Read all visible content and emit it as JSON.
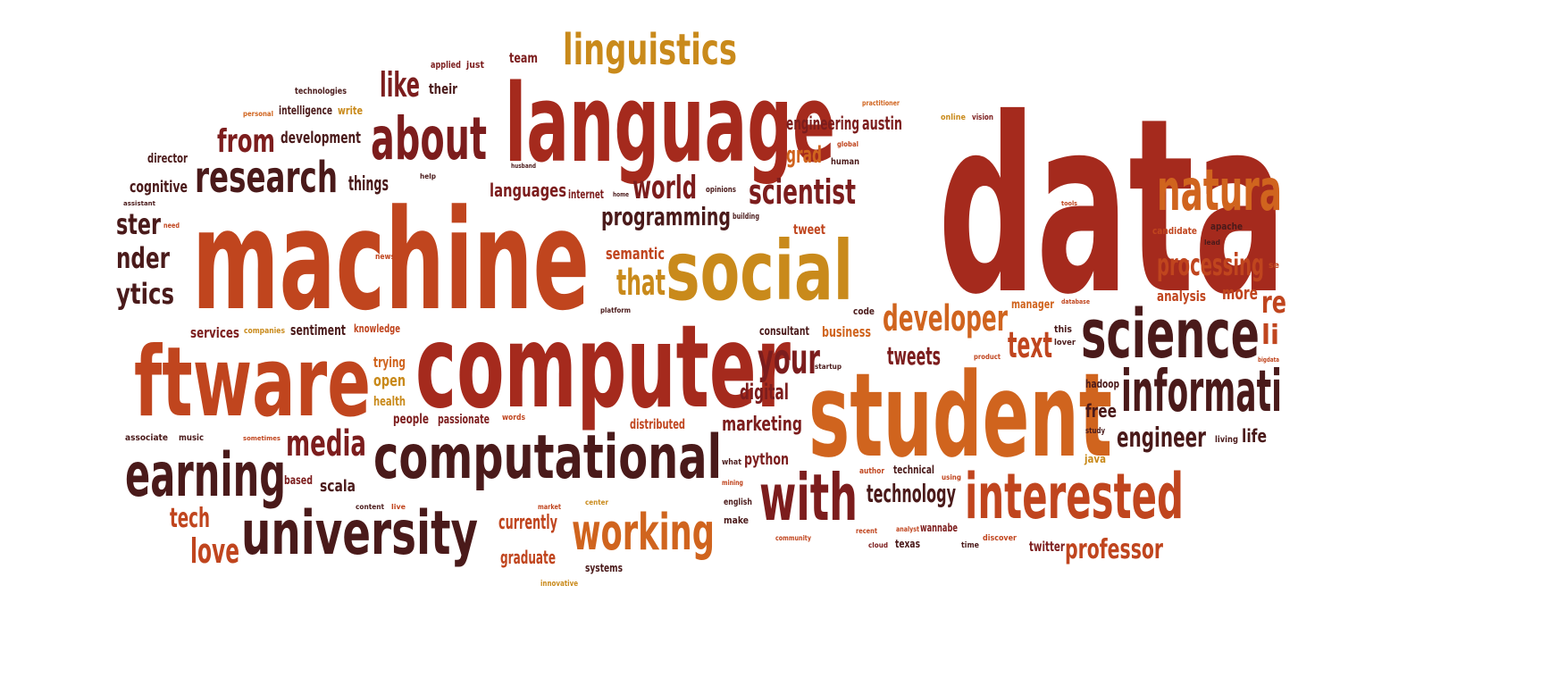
{
  "palette": {
    "dark": "#4a1a1a",
    "maroon": "#7c1d1d",
    "red": "#a52a1d",
    "rust": "#c0451e",
    "orange": "#d0641e",
    "gold": "#c98a1b"
  },
  "words": [
    {
      "text": "data",
      "color": "red"
    },
    {
      "text": "machine",
      "color": "rust"
    },
    {
      "text": "language",
      "color": "red"
    },
    {
      "text": "computer",
      "color": "red"
    },
    {
      "text": "student",
      "color": "orange"
    },
    {
      "text": "ftware",
      "color": "rust"
    },
    {
      "text": "social",
      "color": "gold"
    },
    {
      "text": "computational",
      "color": "dark"
    },
    {
      "text": "science",
      "color": "dark"
    },
    {
      "text": "informati",
      "color": "dark"
    },
    {
      "text": "interested",
      "color": "rust"
    },
    {
      "text": "university",
      "color": "dark"
    },
    {
      "text": "earning",
      "color": "dark"
    },
    {
      "text": "natura",
      "color": "orange"
    },
    {
      "text": "about",
      "color": "maroon"
    },
    {
      "text": "research",
      "color": "dark"
    },
    {
      "text": "linguistics",
      "color": "gold"
    },
    {
      "text": "with",
      "color": "maroon"
    },
    {
      "text": "working",
      "color": "orange"
    },
    {
      "text": "developer",
      "color": "orange"
    },
    {
      "text": "scientist",
      "color": "maroon"
    },
    {
      "text": "media",
      "color": "maroon"
    },
    {
      "text": "your",
      "color": "maroon"
    },
    {
      "text": "from",
      "color": "maroon"
    },
    {
      "text": "processing",
      "color": "rust"
    },
    {
      "text": "like",
      "color": "maroon"
    },
    {
      "text": "world",
      "color": "maroon"
    },
    {
      "text": "that",
      "color": "gold"
    },
    {
      "text": "text",
      "color": "rust"
    },
    {
      "text": "programming",
      "color": "dark"
    },
    {
      "text": "engineer",
      "color": "dark"
    },
    {
      "text": "technology",
      "color": "dark"
    },
    {
      "text": "professor",
      "color": "rust"
    },
    {
      "text": "tweets",
      "color": "maroon"
    },
    {
      "text": "love",
      "color": "rust"
    },
    {
      "text": "tech",
      "color": "rust"
    },
    {
      "text": "ster",
      "color": "dark"
    },
    {
      "text": "nder",
      "color": "dark"
    },
    {
      "text": "ytics",
      "color": "dark"
    },
    {
      "text": "re",
      "color": "rust"
    },
    {
      "text": "li",
      "color": "rust"
    },
    {
      "text": "things",
      "color": "dark"
    },
    {
      "text": "marketing",
      "color": "maroon"
    },
    {
      "text": "digital",
      "color": "maroon"
    },
    {
      "text": "currently",
      "color": "rust"
    },
    {
      "text": "graduate",
      "color": "rust"
    },
    {
      "text": "languages",
      "color": "maroon"
    },
    {
      "text": "grad",
      "color": "orange"
    },
    {
      "text": "engineering",
      "color": "maroon"
    },
    {
      "text": "austin",
      "color": "maroon"
    },
    {
      "text": "development",
      "color": "dark"
    },
    {
      "text": "cognitive",
      "color": "dark"
    },
    {
      "text": "free",
      "color": "dark"
    },
    {
      "text": "life",
      "color": "dark"
    },
    {
      "text": "more",
      "color": "rust"
    },
    {
      "text": "analysis",
      "color": "rust"
    },
    {
      "text": "python",
      "color": "maroon"
    },
    {
      "text": "semantic",
      "color": "rust"
    },
    {
      "text": "scala",
      "color": "dark"
    },
    {
      "text": "sentiment",
      "color": "dark"
    },
    {
      "text": "services",
      "color": "maroon"
    },
    {
      "text": "business",
      "color": "orange"
    },
    {
      "text": "twitter",
      "color": "maroon"
    },
    {
      "text": "people",
      "color": "maroon"
    },
    {
      "text": "passionate",
      "color": "maroon"
    },
    {
      "text": "open",
      "color": "gold"
    },
    {
      "text": "trying",
      "color": "orange"
    },
    {
      "text": "health",
      "color": "gold"
    },
    {
      "text": "distributed",
      "color": "rust"
    },
    {
      "text": "tweet",
      "color": "rust"
    },
    {
      "text": "team",
      "color": "maroon"
    },
    {
      "text": "their",
      "color": "dark"
    },
    {
      "text": "director",
      "color": "dark"
    },
    {
      "text": "consultant",
      "color": "dark"
    },
    {
      "text": "internet",
      "color": "maroon"
    },
    {
      "text": "intelligence",
      "color": "dark"
    },
    {
      "text": "knowledge",
      "color": "rust"
    },
    {
      "text": "based",
      "color": "maroon"
    },
    {
      "text": "hadoop",
      "color": "dark"
    },
    {
      "text": "manager",
      "color": "orange"
    },
    {
      "text": "candidate",
      "color": "rust"
    },
    {
      "text": "apache",
      "color": "dark"
    },
    {
      "text": "systems",
      "color": "dark"
    },
    {
      "text": "technical",
      "color": "dark"
    },
    {
      "text": "texas",
      "color": "dark"
    },
    {
      "text": "wannabe",
      "color": "maroon"
    },
    {
      "text": "java",
      "color": "gold"
    },
    {
      "text": "make",
      "color": "dark"
    },
    {
      "text": "english",
      "color": "dark"
    },
    {
      "text": "code",
      "color": "dark"
    },
    {
      "text": "music",
      "color": "dark"
    },
    {
      "text": "applied",
      "color": "maroon"
    },
    {
      "text": "just",
      "color": "maroon"
    },
    {
      "text": "write",
      "color": "gold"
    },
    {
      "text": "technologies",
      "color": "dark"
    },
    {
      "text": "personal",
      "color": "orange"
    },
    {
      "text": "companies",
      "color": "gold"
    },
    {
      "text": "words",
      "color": "rust"
    },
    {
      "text": "associate",
      "color": "dark"
    },
    {
      "text": "online",
      "color": "gold"
    },
    {
      "text": "vision",
      "color": "maroon"
    },
    {
      "text": "human",
      "color": "dark"
    },
    {
      "text": "global",
      "color": "rust"
    },
    {
      "text": "opinions",
      "color": "dark"
    },
    {
      "text": "building",
      "color": "dark"
    },
    {
      "text": "platform",
      "color": "dark"
    },
    {
      "text": "news",
      "color": "rust"
    },
    {
      "text": "need",
      "color": "rust"
    },
    {
      "text": "assistant",
      "color": "dark"
    },
    {
      "text": "help",
      "color": "dark"
    },
    {
      "text": "husband",
      "color": "dark"
    },
    {
      "text": "practitioner",
      "color": "orange"
    },
    {
      "text": "lead",
      "color": "dark"
    },
    {
      "text": "tools",
      "color": "rust"
    },
    {
      "text": "database",
      "color": "rust"
    },
    {
      "text": "this",
      "color": "dark"
    },
    {
      "text": "lover",
      "color": "dark"
    },
    {
      "text": "product",
      "color": "rust"
    },
    {
      "text": "startup",
      "color": "dark"
    },
    {
      "text": "study",
      "color": "dark"
    },
    {
      "text": "living",
      "color": "dark"
    },
    {
      "text": "what",
      "color": "dark"
    },
    {
      "text": "mining",
      "color": "rust"
    },
    {
      "text": "author",
      "color": "rust"
    },
    {
      "text": "using",
      "color": "rust"
    },
    {
      "text": "content",
      "color": "dark"
    },
    {
      "text": "market",
      "color": "rust"
    },
    {
      "text": "center",
      "color": "gold"
    },
    {
      "text": "live",
      "color": "rust"
    },
    {
      "text": "sometimes",
      "color": "rust"
    },
    {
      "text": "innovative",
      "color": "gold"
    },
    {
      "text": "community",
      "color": "rust"
    },
    {
      "text": "recent",
      "color": "rust"
    },
    {
      "text": "cloud",
      "color": "maroon"
    },
    {
      "text": "analyst",
      "color": "rust"
    },
    {
      "text": "time",
      "color": "dark"
    },
    {
      "text": "discover",
      "color": "rust"
    },
    {
      "text": "home",
      "color": "dark"
    },
    {
      "text": "bigdata",
      "color": "rust"
    },
    {
      "text": "se",
      "color": "rust"
    }
  ]
}
